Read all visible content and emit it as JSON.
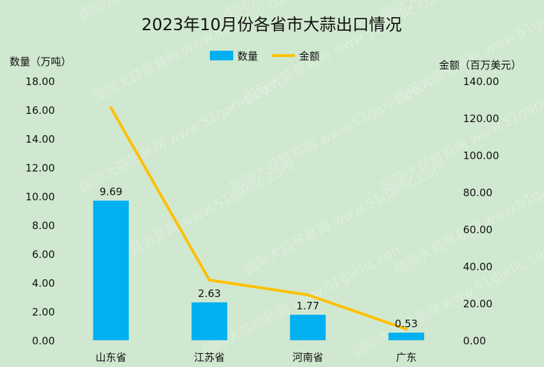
{
  "chart_data": {
    "type": "bar",
    "title": "2023年10月份各省市大蒜出口情况",
    "categories": [
      "山东省",
      "江苏省",
      "河南省",
      "广东"
    ],
    "series": [
      {
        "name": "数量",
        "kind": "bar",
        "axis": "left",
        "color": "#00b0f0",
        "values": [
          9.69,
          2.63,
          1.77,
          0.53
        ]
      },
      {
        "name": "金额",
        "kind": "line",
        "axis": "right",
        "color": "#ffc000",
        "values": [
          125.5,
          32.5,
          24.5,
          6.0
        ]
      }
    ],
    "ylabel_left": "数量（万吨）",
    "ylabel_right": "金额（百万美元）",
    "ylim_left": [
      0,
      18
    ],
    "ylim_right": [
      0,
      140
    ],
    "yticks_left": [
      "0.00",
      "2.00",
      "4.00",
      "6.00",
      "8.00",
      "10.00",
      "12.00",
      "14.00",
      "16.00",
      "18.00"
    ],
    "yticks_right": [
      "0.00",
      "20.00",
      "40.00",
      "60.00",
      "80.00",
      "100.00",
      "120.00",
      "140.00"
    ],
    "legend_position": "top-center",
    "grid": false,
    "watermark": "国际大蒜贸易网 www.51garlic.com"
  }
}
